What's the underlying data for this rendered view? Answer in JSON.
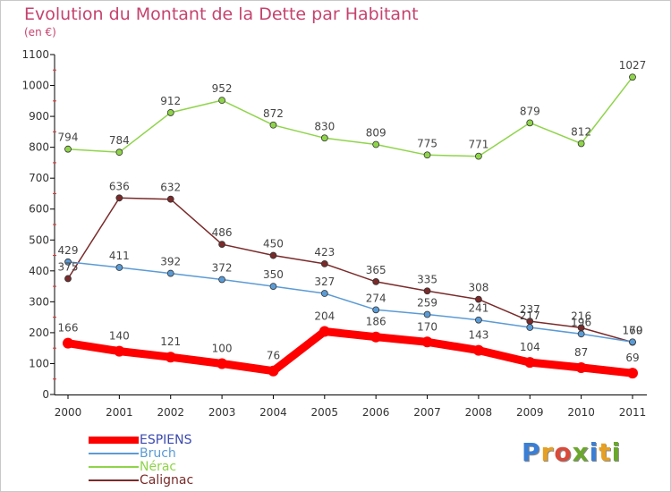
{
  "title": "Evolution du Montant de la Dette par Habitant",
  "subtitle": "(en €)",
  "logo": {
    "letters": [
      {
        "ch": "P",
        "color": "#3a7fd5"
      },
      {
        "ch": "r",
        "color": "#e8a020"
      },
      {
        "ch": "o",
        "color": "#d84a3a"
      },
      {
        "ch": "x",
        "color": "#6aa82c"
      },
      {
        "ch": "i",
        "color": "#3a7fd5"
      },
      {
        "ch": "t",
        "color": "#e8a020"
      },
      {
        "ch": "i",
        "color": "#6aa82c"
      }
    ]
  },
  "chart_data": {
    "type": "line",
    "title": "Evolution du Montant de la Dette par Habitant",
    "subtitle": "(en €)",
    "x": [
      "2000",
      "2001",
      "2002",
      "2003",
      "2004",
      "2005",
      "2006",
      "2007",
      "2008",
      "2009",
      "2010",
      "2011"
    ],
    "ylim": [
      0,
      1100
    ],
    "yticks": [
      0,
      100,
      200,
      300,
      400,
      500,
      600,
      700,
      800,
      900,
      1000,
      1100
    ],
    "grid": false,
    "legend": "bottom-left",
    "series": [
      {
        "name": "ESPIENS",
        "color": "#ff0000",
        "values": [
          166,
          140,
          121,
          100,
          76,
          204,
          186,
          170,
          143,
          104,
          87,
          69
        ]
      },
      {
        "name": "Bruch",
        "color": "#5b9bd5",
        "values": [
          429,
          411,
          392,
          372,
          350,
          327,
          274,
          259,
          241,
          217,
          196,
          170
        ]
      },
      {
        "name": "Nérac",
        "color": "#8fd44a",
        "values": [
          794,
          784,
          912,
          952,
          872,
          830,
          809,
          775,
          771,
          879,
          812,
          1027
        ]
      },
      {
        "name": "Calignac",
        "color": "#7a2a2a",
        "values": [
          375,
          636,
          632,
          486,
          450,
          423,
          365,
          335,
          308,
          237,
          216,
          169
        ]
      }
    ]
  }
}
